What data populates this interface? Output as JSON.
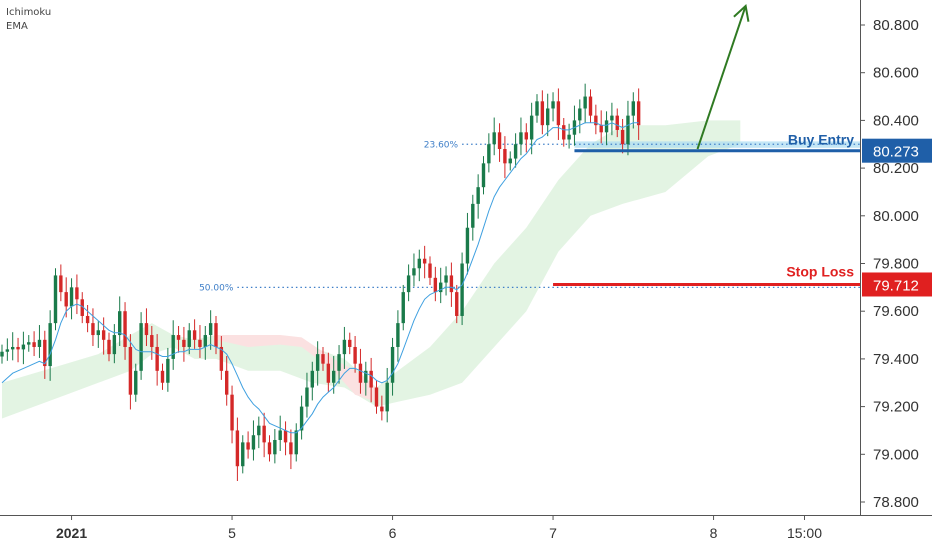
{
  "indicators": [
    "Ichimoku",
    "EMA"
  ],
  "colors": {
    "up": "#1a7a4a",
    "down": "#d42828",
    "ema": "#3fa0e0",
    "cloud_bull": "#e3f4e3",
    "cloud_bear": "#fbe1e1",
    "buy": "#1f5fa8",
    "stop": "#e02020",
    "arrow": "#2f7a22",
    "zone": "#a9dcf2"
  },
  "chart_data": {
    "type": "candlestick",
    "ylim": [
      78.7,
      80.98
    ],
    "y_ticks": [
      "80.800",
      "80.600",
      "80.400",
      "80.200",
      "80.000",
      "79.800",
      "79.600",
      "79.400",
      "79.200",
      "79.000",
      "78.800"
    ],
    "y_tick_values": [
      80.8,
      80.6,
      80.4,
      80.2,
      80.0,
      79.8,
      79.6,
      79.4,
      79.2,
      79.0,
      78.8
    ],
    "x_ticks": [
      {
        "label": "2021",
        "bar": 13,
        "bold": true
      },
      {
        "label": "5",
        "bar": 43,
        "bold": false
      },
      {
        "label": "6",
        "bar": 73,
        "bold": false
      },
      {
        "label": "7",
        "bar": 103,
        "bold": false
      },
      {
        "label": "8",
        "bar": 133,
        "bold": false
      },
      {
        "label": "15:00",
        "bar": 150,
        "bold": false
      }
    ],
    "fib_levels": [
      {
        "label": "23.60%",
        "value": 80.3,
        "from_bar": 86
      },
      {
        "label": "50.00%",
        "value": 79.7,
        "from_bar": 44
      }
    ],
    "levels": [
      {
        "label": "Buy Entry",
        "badge": "80.273",
        "value": 80.273,
        "from_bar": 107,
        "kind": "buy",
        "zone": [
          80.285,
          80.312
        ]
      },
      {
        "label": "Stop Loss",
        "badge": "79.712",
        "value": 79.712,
        "from_bar": 103,
        "kind": "stop"
      }
    ],
    "arrow": {
      "from": {
        "bar": 130,
        "value": 80.28
      },
      "to": {
        "bar": 139,
        "value": 80.88
      }
    },
    "closes": [
      79.43,
      79.44,
      79.45,
      79.44,
      79.46,
      79.47,
      79.45,
      79.48,
      79.37,
      79.55,
      79.75,
      79.68,
      79.62,
      79.7,
      79.65,
      79.58,
      79.55,
      79.5,
      79.52,
      79.48,
      79.42,
      79.5,
      79.6,
      79.45,
      79.25,
      79.35,
      79.55,
      79.5,
      79.45,
      79.35,
      79.3,
      79.4,
      79.5,
      79.48,
      79.45,
      79.52,
      79.48,
      79.45,
      79.5,
      79.55,
      79.45,
      79.35,
      79.25,
      79.1,
      78.95,
      79.05,
      79.02,
      79.08,
      79.12,
      79.05,
      79.0,
      79.06,
      79.1,
      79.05,
      79.0,
      79.1,
      79.2,
      79.28,
      79.35,
      79.42,
      79.38,
      79.3,
      79.35,
      79.42,
      79.48,
      79.45,
      79.38,
      79.3,
      79.35,
      79.28,
      79.2,
      79.18,
      79.3,
      79.45,
      79.55,
      79.68,
      79.75,
      79.78,
      79.82,
      79.8,
      79.74,
      79.68,
      79.72,
      79.75,
      79.68,
      79.58,
      79.8,
      79.95,
      80.05,
      80.12,
      80.22,
      80.3,
      80.35,
      80.28,
      80.22,
      80.24,
      80.3,
      80.35,
      80.32,
      80.42,
      80.48,
      80.38,
      80.45,
      80.48,
      80.38,
      80.32,
      80.34,
      80.4,
      80.45,
      80.5,
      80.42,
      80.38,
      80.35,
      80.4,
      80.42,
      80.36,
      80.3,
      80.42,
      80.48,
      80.38
    ],
    "ema": [
      79.3,
      79.32,
      79.34,
      79.35,
      79.36,
      79.37,
      79.38,
      79.39,
      79.38,
      79.42,
      79.48,
      79.55,
      79.6,
      79.62,
      79.63,
      79.62,
      79.6,
      79.58,
      79.56,
      79.54,
      79.52,
      79.51,
      79.51,
      79.5,
      79.47,
      79.44,
      79.43,
      79.43,
      79.43,
      79.42,
      79.41,
      79.41,
      79.42,
      79.43,
      79.43,
      79.44,
      79.44,
      79.44,
      79.45,
      79.46,
      79.45,
      79.44,
      79.42,
      79.38,
      79.33,
      79.28,
      79.24,
      79.21,
      79.19,
      79.16,
      79.13,
      79.12,
      79.11,
      79.1,
      79.09,
      79.09,
      79.11,
      79.14,
      79.17,
      79.21,
      79.24,
      79.26,
      79.28,
      79.31,
      79.34,
      79.36,
      79.36,
      79.35,
      79.34,
      79.33,
      79.31,
      79.3,
      79.31,
      79.34,
      79.38,
      79.44,
      79.5,
      79.56,
      79.61,
      79.65,
      79.67,
      79.68,
      79.69,
      79.7,
      79.7,
      79.69,
      79.71,
      79.76,
      79.82,
      79.88,
      79.95,
      80.02,
      80.08,
      80.12,
      80.15,
      80.18,
      80.21,
      80.24,
      80.26,
      80.29,
      80.32,
      80.33,
      80.35,
      80.37,
      80.37,
      80.36,
      80.36,
      80.37,
      80.38,
      80.39,
      80.39,
      80.39,
      80.38,
      80.38,
      80.39,
      80.38,
      80.37,
      80.38,
      80.39,
      80.39
    ],
    "cloud": [
      [
        0,
        79.15,
        79.3
      ],
      [
        6,
        79.2,
        79.34
      ],
      [
        12,
        79.25,
        79.38
      ],
      [
        18,
        79.3,
        79.42
      ],
      [
        24,
        79.35,
        79.5
      ],
      [
        28,
        79.42,
        79.55
      ],
      [
        32,
        79.45,
        79.5
      ],
      [
        36,
        79.4,
        79.48
      ],
      [
        40,
        79.4,
        79.5
      ],
      [
        46,
        79.35,
        79.45
      ],
      [
        52,
        79.35,
        79.48
      ],
      [
        58,
        79.3,
        79.45
      ],
      [
        64,
        79.28,
        79.4
      ],
      [
        70,
        79.2,
        79.28
      ],
      [
        74,
        79.22,
        79.35
      ],
      [
        80,
        79.25,
        79.45
      ],
      [
        86,
        79.3,
        79.6
      ],
      [
        92,
        79.45,
        79.8
      ],
      [
        98,
        79.6,
        79.95
      ],
      [
        104,
        79.85,
        80.15
      ],
      [
        110,
        80.0,
        80.3
      ],
      [
        116,
        80.05,
        80.38
      ],
      [
        124,
        80.1,
        80.38
      ],
      [
        132,
        80.25,
        80.4
      ],
      [
        138,
        80.3,
        80.4
      ]
    ],
    "bear_cloud": [
      [
        40,
        79.48,
        79.5
      ],
      [
        46,
        79.45,
        79.5
      ],
      [
        52,
        79.46,
        79.5
      ],
      [
        56,
        79.45,
        79.49
      ],
      [
        62,
        79.35,
        79.4
      ],
      [
        66,
        79.25,
        79.35
      ],
      [
        70,
        79.22,
        79.28
      ]
    ]
  }
}
